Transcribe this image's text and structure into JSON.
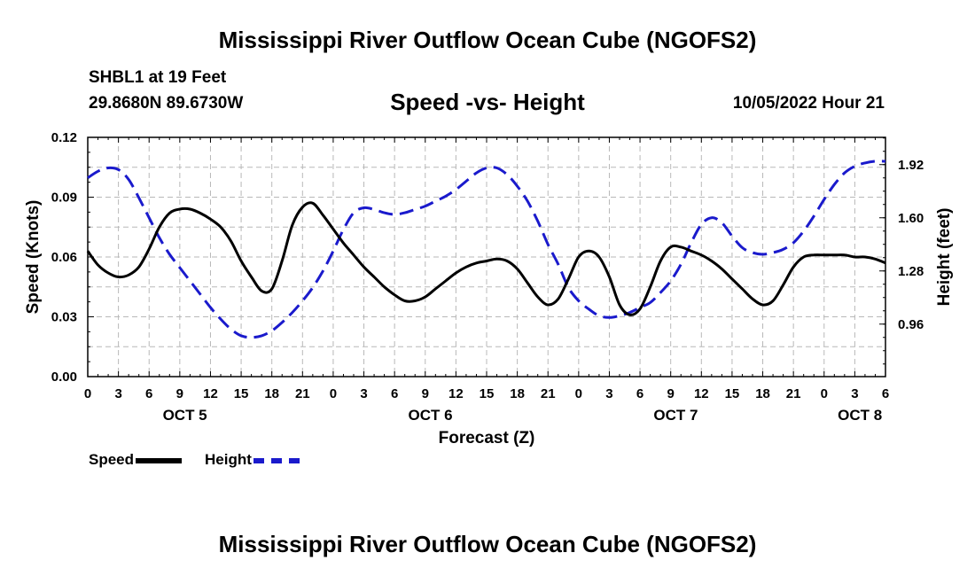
{
  "page": {
    "title": "Mississippi River Outflow Ocean Cube (NGOFS2)",
    "title_repeat": "Mississippi River Outflow Ocean Cube (NGOFS2)",
    "station": "SHBL1 at 19 Feet",
    "coords": "29.8680N  89.6730W",
    "subtitle": "Speed -vs- Height",
    "datetime": "10/05/2022 Hour 21"
  },
  "chart_data": {
    "type": "line",
    "title": "Speed -vs- Height",
    "xlabel": "Forecast (Z)",
    "ylabel": "Speed (Knots)",
    "y2label": "Height (feet)",
    "x_unit": "hours from 10/05/2022 00Z",
    "xlim": [
      0,
      78
    ],
    "ylim": [
      0,
      0.12
    ],
    "y2lim": [
      0.644,
      2.084
    ],
    "x_ticks": [
      0,
      3,
      6,
      9,
      12,
      15,
      18,
      21,
      24,
      27,
      30,
      33,
      36,
      39,
      42,
      45,
      48,
      51,
      54,
      57,
      60,
      63,
      66,
      69,
      72,
      75,
      78
    ],
    "x_tick_labels": [
      "0",
      "3",
      "6",
      "9",
      "12",
      "15",
      "18",
      "21",
      "0",
      "3",
      "6",
      "9",
      "12",
      "15",
      "18",
      "21",
      "0",
      "3",
      "6",
      "9",
      "12",
      "15",
      "18",
      "21",
      "0",
      "3",
      "6"
    ],
    "day_labels": [
      {
        "label": "OCT 5",
        "x": 9.5
      },
      {
        "label": "OCT 6",
        "x": 33.5
      },
      {
        "label": "OCT 7",
        "x": 57.5
      },
      {
        "label": "OCT 8",
        "x": 75.5
      }
    ],
    "y_ticks": [
      0,
      0.03,
      0.06,
      0.09,
      0.12
    ],
    "y_tick_labels": [
      "0.00",
      "0.03",
      "0.06",
      "0.09",
      "0.12"
    ],
    "y2_ticks": [
      0.96,
      1.28,
      1.6,
      1.92
    ],
    "y2_tick_labels": [
      "0.96",
      "1.28",
      "1.60",
      "1.92"
    ],
    "grid": true,
    "series": [
      {
        "name": "Speed",
        "axis": "left",
        "color": "#000000",
        "style": "solid",
        "x": [
          0,
          1,
          2,
          3,
          4,
          5,
          6,
          7,
          8,
          9,
          10,
          11,
          12,
          13,
          14,
          15,
          16,
          17,
          18,
          19,
          20,
          21,
          22,
          23,
          24,
          25,
          26,
          27,
          28,
          29,
          30,
          31,
          32,
          33,
          34,
          35,
          36,
          37,
          38,
          39,
          40,
          41,
          42,
          43,
          44,
          45,
          46,
          47,
          48,
          49,
          50,
          51,
          52,
          53,
          54,
          55,
          56,
          57,
          58,
          59,
          60,
          61,
          62,
          63,
          64,
          65,
          66,
          67,
          68,
          69,
          70,
          71,
          72,
          73,
          74,
          75,
          76,
          77,
          78
        ],
        "values": [
          0.063,
          0.056,
          0.052,
          0.05,
          0.051,
          0.055,
          0.064,
          0.075,
          0.082,
          0.084,
          0.084,
          0.082,
          0.079,
          0.075,
          0.068,
          0.058,
          0.05,
          0.043,
          0.044,
          0.058,
          0.076,
          0.085,
          0.087,
          0.081,
          0.074,
          0.067,
          0.061,
          0.055,
          0.05,
          0.045,
          0.041,
          0.038,
          0.038,
          0.04,
          0.044,
          0.048,
          0.052,
          0.055,
          0.057,
          0.058,
          0.059,
          0.058,
          0.054,
          0.047,
          0.04,
          0.036,
          0.039,
          0.049,
          0.06,
          0.063,
          0.06,
          0.05,
          0.036,
          0.031,
          0.034,
          0.045,
          0.058,
          0.065,
          0.065,
          0.063,
          0.061,
          0.058,
          0.054,
          0.049,
          0.044,
          0.039,
          0.036,
          0.038,
          0.046,
          0.055,
          0.06,
          0.061,
          0.061,
          0.061,
          0.061,
          0.06,
          0.06,
          0.059,
          0.057
        ]
      },
      {
        "name": "Height",
        "axis": "right",
        "color": "#1a1acc",
        "style": "dashed",
        "x": [
          0,
          1,
          2,
          3,
          4,
          5,
          6,
          7,
          8,
          9,
          10,
          11,
          12,
          13,
          14,
          15,
          16,
          17,
          18,
          19,
          20,
          21,
          22,
          23,
          24,
          25,
          26,
          27,
          28,
          29,
          30,
          31,
          32,
          33,
          34,
          35,
          36,
          37,
          38,
          39,
          40,
          41,
          42,
          43,
          44,
          45,
          46,
          47,
          48,
          49,
          50,
          51,
          52,
          53,
          54,
          55,
          56,
          57,
          58,
          59,
          60,
          61,
          62,
          63,
          64,
          65,
          66,
          67,
          68,
          69,
          70,
          71,
          72,
          73,
          74,
          75,
          76,
          77,
          78
        ],
        "values": [
          1.84,
          1.88,
          1.9,
          1.89,
          1.83,
          1.72,
          1.6,
          1.48,
          1.38,
          1.3,
          1.22,
          1.14,
          1.06,
          0.99,
          0.93,
          0.89,
          0.88,
          0.89,
          0.92,
          0.97,
          1.03,
          1.1,
          1.18,
          1.28,
          1.4,
          1.53,
          1.63,
          1.66,
          1.65,
          1.63,
          1.62,
          1.63,
          1.65,
          1.67,
          1.7,
          1.73,
          1.77,
          1.82,
          1.87,
          1.9,
          1.9,
          1.86,
          1.79,
          1.7,
          1.58,
          1.44,
          1.32,
          1.18,
          1.1,
          1.05,
          1.01,
          1.0,
          1.01,
          1.03,
          1.06,
          1.09,
          1.15,
          1.22,
          1.32,
          1.45,
          1.56,
          1.6,
          1.57,
          1.49,
          1.42,
          1.39,
          1.38,
          1.39,
          1.41,
          1.45,
          1.52,
          1.61,
          1.71,
          1.8,
          1.87,
          1.91,
          1.93,
          1.94,
          1.94
        ]
      }
    ]
  }
}
